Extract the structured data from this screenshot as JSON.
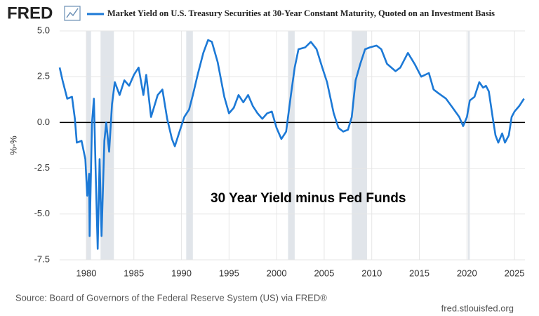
{
  "chart_data": {
    "type": "line",
    "brand": "FRED",
    "title": "Market Yield on U.S. Treasury Securities at 30-Year Constant Maturity, Quoted on an Investment Basis",
    "y_label": "%-%",
    "annotation": "30 Year Yield minus Fed Funds",
    "source": "Source: Board of Governors of the Federal Reserve System (US) via FRED®",
    "site": "fred.stlouisfed.org",
    "xlim": [
      1977.2,
      2026.1
    ],
    "xticks": [
      1980,
      1985,
      1990,
      1995,
      2000,
      2005,
      2010,
      2015,
      2020,
      2025
    ],
    "ylim": [
      -7.5,
      5.0
    ],
    "yticks": [
      {
        "value": -7.5,
        "label": "-7.5"
      },
      {
        "value": -5.0,
        "label": "-5.0"
      },
      {
        "value": -2.5,
        "label": "-2.5"
      },
      {
        "value": 0,
        "label": "0.0"
      },
      {
        "value": 2.5,
        "label": "2.5"
      },
      {
        "value": 5.0,
        "label": "5.0"
      }
    ],
    "grid": true,
    "reference_line": 0,
    "recession_color": "#e1e5ea",
    "recessions": [
      [
        1980.0,
        1980.5
      ],
      [
        1981.5,
        1982.9
      ],
      [
        1990.5,
        1991.2
      ],
      [
        2001.2,
        2001.9
      ],
      [
        2007.9,
        2009.5
      ],
      [
        2020.1,
        2020.3
      ]
    ],
    "x": [
      1977.2,
      1977.5,
      1978.0,
      1978.5,
      1978.8,
      1979.0,
      1979.5,
      1979.9,
      1980.1,
      1980.3,
      1980.35,
      1980.6,
      1980.8,
      1981.0,
      1981.2,
      1981.4,
      1981.6,
      1981.9,
      1982.1,
      1982.4,
      1982.7,
      1983.0,
      1983.5,
      1984.0,
      1984.5,
      1985.0,
      1985.5,
      1986.0,
      1986.3,
      1986.8,
      1987.5,
      1988.0,
      1988.5,
      1989.0,
      1989.3,
      1989.8,
      1990.3,
      1990.8,
      1991.2,
      1991.7,
      1992.3,
      1992.8,
      1993.2,
      1993.8,
      1994.5,
      1995.0,
      1995.5,
      1996.0,
      1996.5,
      1997.0,
      1997.5,
      1998.0,
      1998.5,
      1999.0,
      1999.5,
      2000.0,
      2000.5,
      2001.0,
      2001.5,
      2001.9,
      2002.3,
      2003.0,
      2003.6,
      2004.2,
      2004.8,
      2005.3,
      2006.0,
      2006.5,
      2007.0,
      2007.5,
      2007.9,
      2008.3,
      2008.8,
      2009.3,
      2009.8,
      2010.5,
      2011.0,
      2011.6,
      2012.5,
      2013.0,
      2013.8,
      2014.5,
      2015.2,
      2016.0,
      2016.5,
      2017.0,
      2017.8,
      2018.5,
      2019.2,
      2019.6,
      2020.0,
      2020.3,
      2020.8,
      2021.3,
      2021.7,
      2022.0,
      2022.3,
      2022.7,
      2023.0,
      2023.3,
      2023.7,
      2024.0,
      2024.4,
      2024.7,
      2025.0,
      2025.5,
      2026.0
    ],
    "series": [
      {
        "name": "Market Yield on U.S. Treasury Securities at 30-Year Constant Maturity, Quoted on an Investment Basis",
        "color": "#1c79d6",
        "values": [
          3.0,
          2.3,
          1.3,
          1.4,
          0.2,
          -1.1,
          -1.0,
          -2.0,
          -4.0,
          -2.8,
          -6.2,
          0.0,
          1.3,
          -3.0,
          -6.9,
          -2.0,
          -6.2,
          -1.0,
          0.0,
          -1.6,
          1.0,
          2.2,
          1.5,
          2.3,
          2.0,
          2.6,
          3.0,
          1.5,
          2.6,
          0.3,
          1.5,
          1.8,
          0.2,
          -0.9,
          -1.3,
          -0.5,
          0.3,
          0.7,
          1.5,
          2.6,
          3.8,
          4.5,
          4.4,
          3.3,
          1.4,
          0.5,
          0.8,
          1.5,
          1.1,
          1.5,
          0.9,
          0.5,
          0.2,
          0.5,
          0.6,
          -0.3,
          -0.9,
          -0.5,
          1.5,
          3.0,
          4.0,
          4.1,
          4.4,
          4.0,
          3.0,
          2.2,
          0.5,
          -0.3,
          -0.5,
          -0.4,
          0.3,
          2.3,
          3.2,
          4.0,
          4.1,
          4.2,
          4.0,
          3.2,
          2.8,
          3.0,
          3.8,
          3.2,
          2.5,
          2.7,
          1.8,
          1.6,
          1.3,
          0.8,
          0.3,
          -0.2,
          0.3,
          1.2,
          1.4,
          2.2,
          1.9,
          2.0,
          1.7,
          0.3,
          -0.7,
          -1.1,
          -0.6,
          -1.1,
          -0.7,
          0.3,
          0.6,
          0.9,
          1.3
        ]
      }
    ]
  }
}
